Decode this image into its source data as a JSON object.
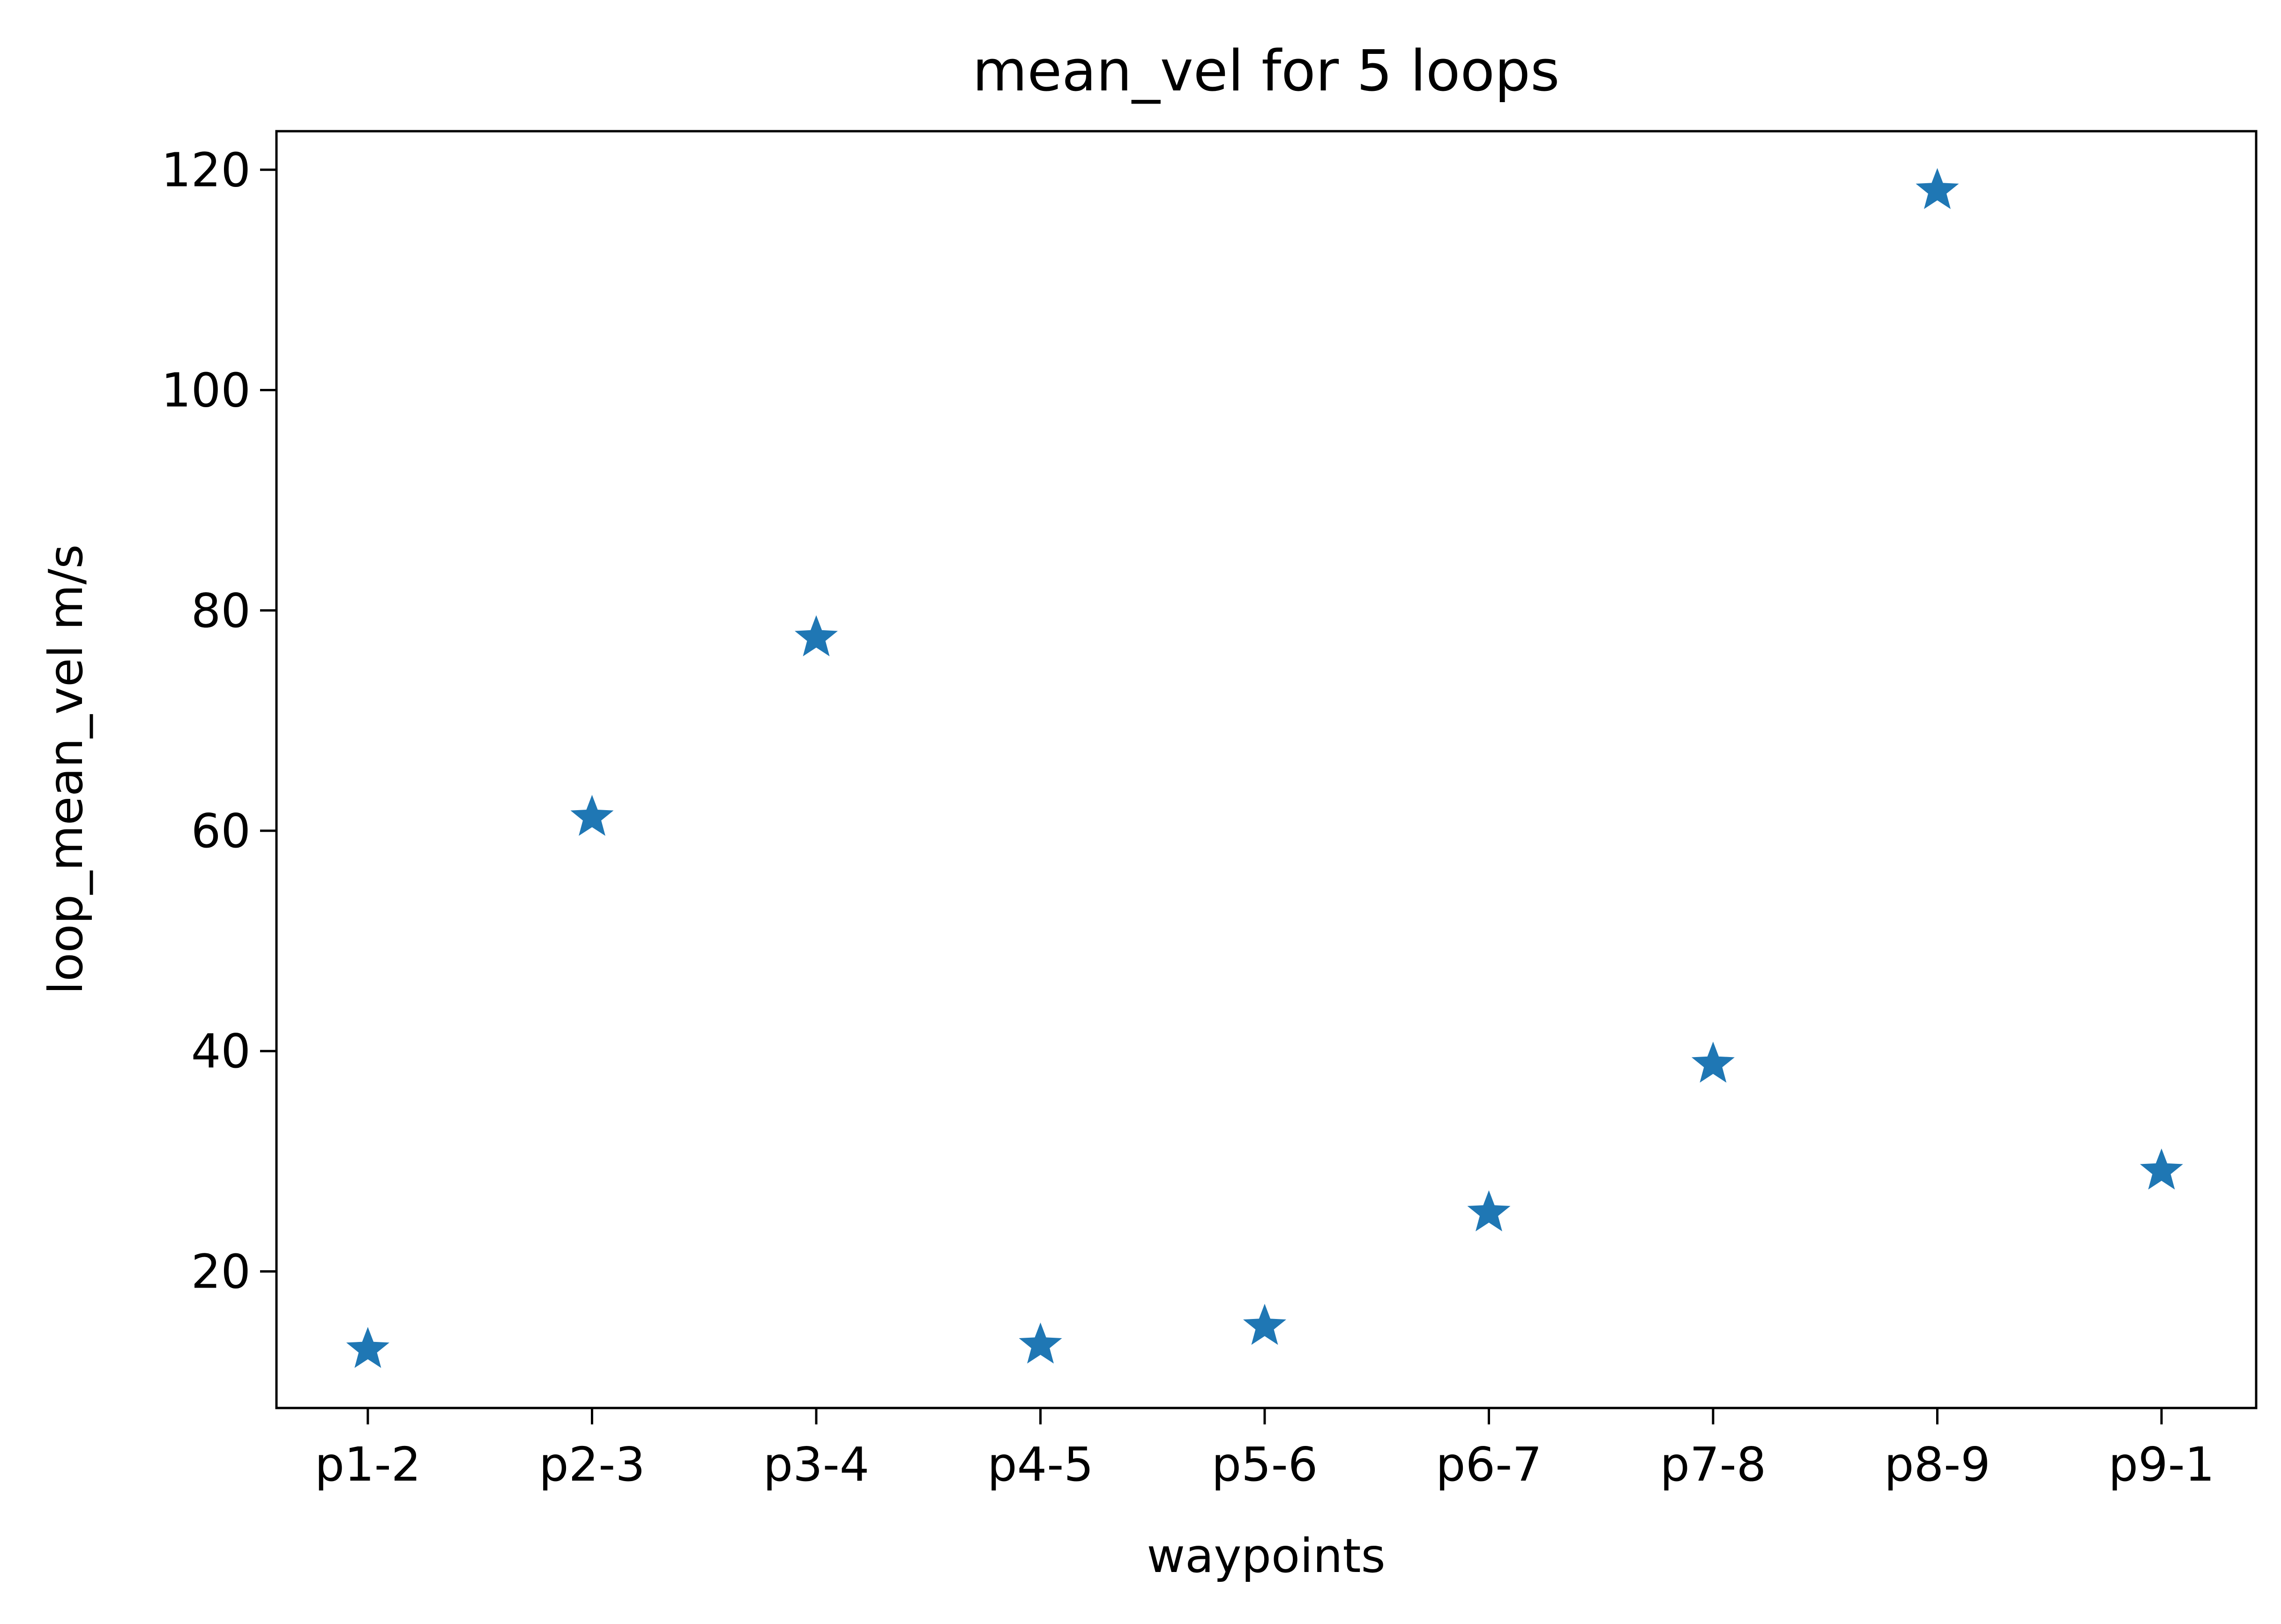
{
  "chart_data": {
    "type": "scatter",
    "title": "mean_vel for 5 loops",
    "xlabel": "waypoints",
    "ylabel": "loop_mean_vel m/s",
    "categories": [
      "p1-2",
      "p2-3",
      "p3-4",
      "p4-5",
      "p5-6",
      "p6-7",
      "p7-8",
      "p8-9",
      "p9-1"
    ],
    "values": [
      12.9,
      61.2,
      77.5,
      13.3,
      15.0,
      25.3,
      38.8,
      118.1,
      29.1
    ],
    "ylim": [
      7.6,
      123.5
    ],
    "yticks": [
      20,
      40,
      60,
      80,
      100,
      120
    ],
    "marker": "star",
    "color": "#1f77b4",
    "grid": false,
    "legend": "none"
  }
}
